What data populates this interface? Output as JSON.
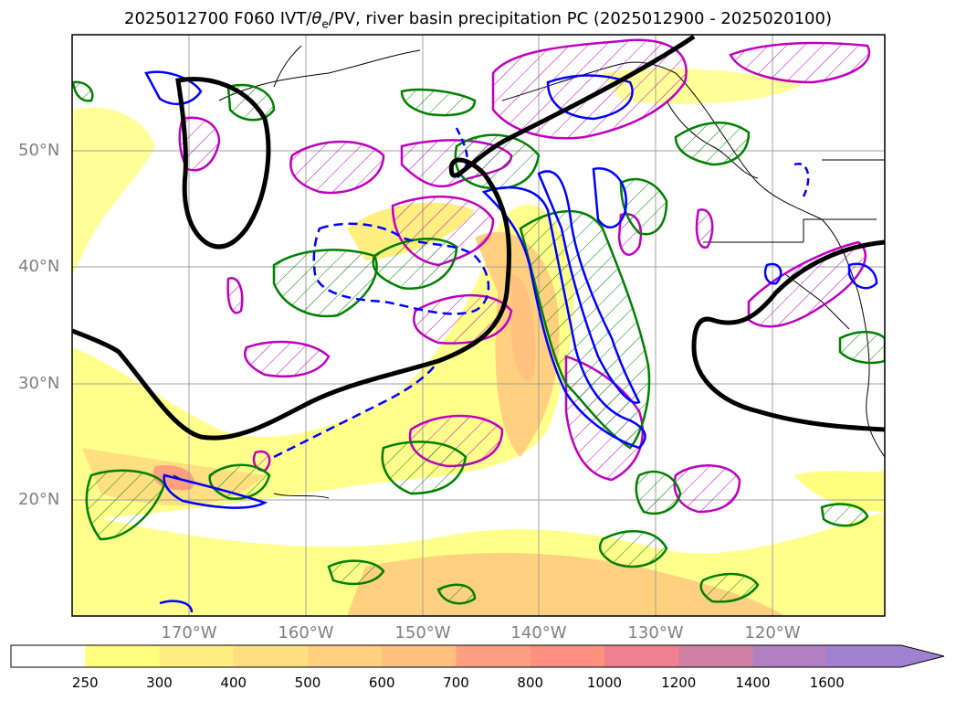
{
  "title": {
    "prefix": "2025012700 F060 IVT/",
    "theta": "θ",
    "theta_sub": "e",
    "suffix": "/PV, river basin precipitation PC (2025012900 - 2025020100)"
  },
  "map": {
    "lon_labels": [
      "170°W",
      "160°W",
      "150°W",
      "140°W",
      "130°W",
      "120°W"
    ],
    "lat_labels": [
      "50°N",
      "40°N",
      "30°N",
      "20°N"
    ],
    "layers": [
      {
        "name": "IVT",
        "type": "filled-contours"
      },
      {
        "name": "theta_e",
        "type": "contour",
        "color": "#0000ff"
      },
      {
        "name": "PV",
        "type": "contour",
        "color": "#000000"
      },
      {
        "name": "precipitation-pc-positive",
        "color": "#008000",
        "hatch": true
      },
      {
        "name": "precipitation-pc-negative",
        "color": "#bf00bf",
        "hatch": true
      }
    ]
  },
  "colorbar": {
    "ticks": [
      "250",
      "300",
      "400",
      "500",
      "600",
      "700",
      "800",
      "1000",
      "1200",
      "1400",
      "1600"
    ],
    "colors": [
      "#ffffff",
      "#ffff80",
      "#ffee80",
      "#ffdf80",
      "#ffd080",
      "#ffc080",
      "#ffa080",
      "#ff9080",
      "#f08090",
      "#d080a0",
      "#b080c0",
      "#a080d0"
    ],
    "extend": "max"
  }
}
